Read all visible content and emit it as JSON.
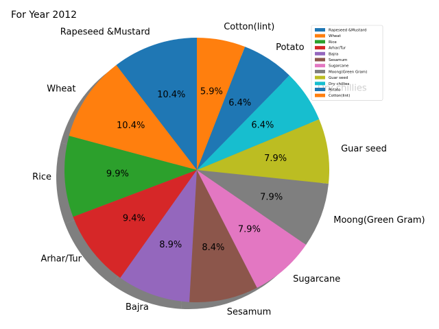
{
  "chart_data": {
    "type": "pie",
    "title": "For Year 2012",
    "shadow": true,
    "start_angle_deg": 90,
    "direction": "counterclockwise",
    "legend_position": "top-right",
    "slices": [
      {
        "label": "Rapeseed &Mustard",
        "percent": 10.4,
        "color": "#1f77b4"
      },
      {
        "label": "Wheat",
        "percent": 10.4,
        "color": "#ff7f0e"
      },
      {
        "label": "Rice",
        "percent": 9.9,
        "color": "#2ca02c"
      },
      {
        "label": "Arhar/Tur",
        "percent": 9.4,
        "color": "#d62728"
      },
      {
        "label": "Bajra",
        "percent": 8.9,
        "color": "#9467bd"
      },
      {
        "label": "Sesamum",
        "percent": 8.4,
        "color": "#8c564b"
      },
      {
        "label": "Sugarcane",
        "percent": 7.9,
        "color": "#e377c2"
      },
      {
        "label": "Moong(Green Gram)",
        "percent": 7.9,
        "color": "#7f7f7f"
      },
      {
        "label": "Guar seed",
        "percent": 7.9,
        "color": "#bcbd22"
      },
      {
        "label": "Dry chillies",
        "percent": 6.4,
        "color": "#17becf"
      },
      {
        "label": "Potato",
        "percent": 6.4,
        "color": "#1f77b4"
      },
      {
        "label": "Cotton(lint)",
        "percent": 5.9,
        "color": "#ff7f0e"
      }
    ]
  }
}
